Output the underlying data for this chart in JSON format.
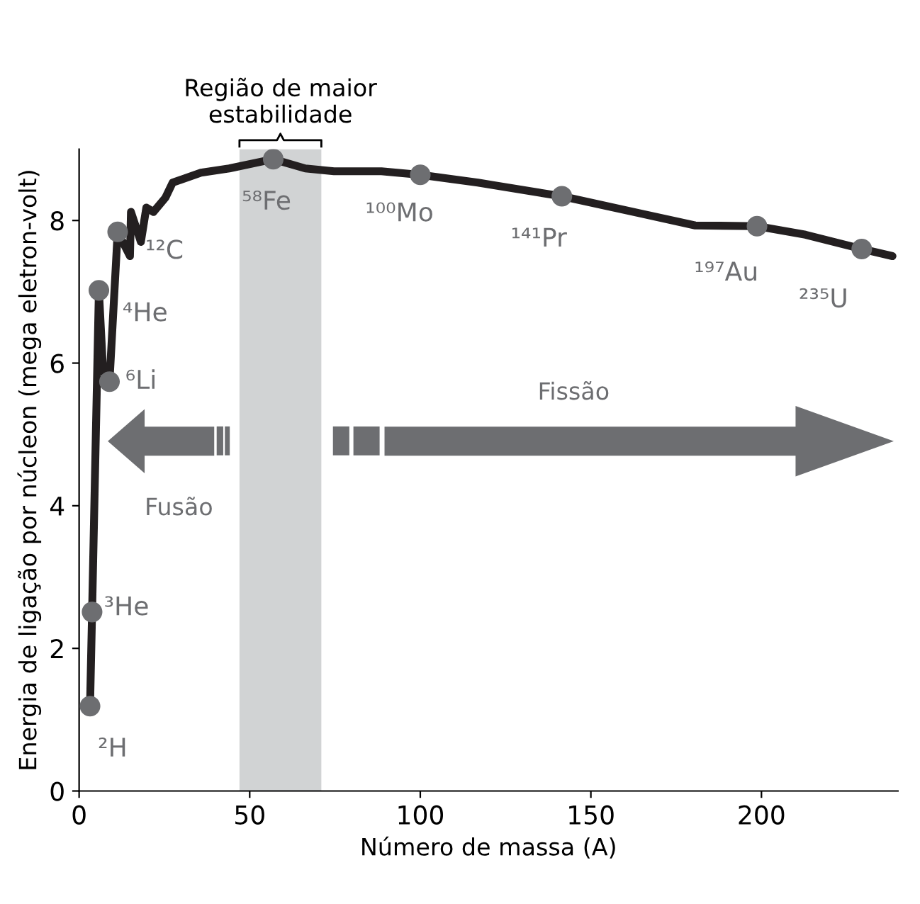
{
  "chart_data": {
    "type": "line",
    "xlabel": "Número de massa (A)",
    "ylabel": "Energia de ligação por núcleon (mega eletron-volt)",
    "xlim": [
      0,
      240
    ],
    "ylim": [
      0,
      9
    ],
    "xticks": [
      0,
      50,
      100,
      150,
      200
    ],
    "yticks": [
      0,
      2,
      4,
      6,
      8
    ],
    "grid": false,
    "legend": false,
    "series": [
      {
        "color": "#231f20",
        "x": [
          3.2,
          3.8,
          5.8,
          7.0,
          8.9,
          11.3,
          14.9,
          15.2,
          18.1,
          19.7,
          21.8,
          25.3,
          27.4,
          35.7,
          44,
          56.9,
          66.3,
          74.7,
          88.6,
          100,
          116.9,
          141.5,
          164.4,
          180.6,
          198.7,
          212.9,
          229.4,
          238.4
        ],
        "values": [
          1.19,
          2.51,
          7.02,
          5.9,
          5.74,
          7.84,
          7.5,
          8.12,
          7.7,
          8.18,
          8.12,
          8.32,
          8.53,
          8.67,
          8.73,
          8.86,
          8.73,
          8.69,
          8.69,
          8.64,
          8.53,
          8.34,
          8.1,
          7.93,
          7.92,
          7.8,
          7.6,
          7.5
        ]
      },
      {
        "type": "scatter",
        "color": "#6d6e71",
        "marker": "circle",
        "x": [
          3.2,
          3.8,
          5.8,
          8.9,
          11.3,
          56.9,
          100,
          141.5,
          198.7,
          229.4
        ],
        "values": [
          1.19,
          2.51,
          7.02,
          5.74,
          7.84,
          8.86,
          8.64,
          8.34,
          7.92,
          7.6
        ]
      }
    ],
    "bands": [
      {
        "axis": "x",
        "from": 47,
        "to": 71,
        "label": "Região de maior\nestabilidade",
        "color": "#d1d3d4"
      }
    ],
    "annotations": [
      {
        "text": "²H",
        "x": 3.2,
        "y": 1.19
      },
      {
        "text": "³He",
        "x": 3.8,
        "y": 2.51
      },
      {
        "text": "⁴He",
        "x": 5.8,
        "y": 7.02
      },
      {
        "text": "⁶Li",
        "x": 8.9,
        "y": 5.74
      },
      {
        "text": "¹²C",
        "x": 11.3,
        "y": 7.84
      },
      {
        "text": "⁵⁸Fe",
        "x": 56.9,
        "y": 8.86
      },
      {
        "text": "¹⁰⁰Mo",
        "x": 100,
        "y": 8.64
      },
      {
        "text": "¹⁴¹Pr",
        "x": 141.5,
        "y": 8.34
      },
      {
        "text": "¹⁹⁷Au",
        "x": 198.7,
        "y": 7.92
      },
      {
        "text": "²³⁵U",
        "x": 229.4,
        "y": 7.6
      },
      "Fusão",
      "Fissão"
    ]
  }
}
